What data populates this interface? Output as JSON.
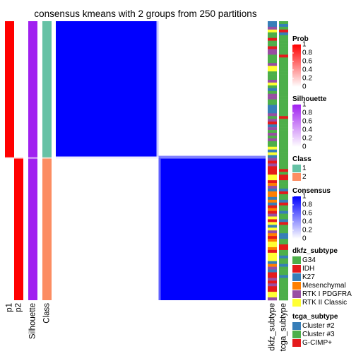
{
  "chart_data": {
    "type": "heatmap",
    "title": "consensus kmeans with 2 groups from 250 partitions",
    "annotation_columns": [
      "p1",
      "p2",
      "Silhouette",
      "Class"
    ],
    "row_annotation_columns": [
      "dkfz_subtype",
      "tcga_subtype"
    ],
    "groups": [
      {
        "class": 1,
        "size_fraction": 0.49,
        "p1": 1,
        "p2": 0,
        "silhouette": 1
      },
      {
        "class": 2,
        "size_fraction": 0.51,
        "p1": 0,
        "p2": 1,
        "silhouette": 1
      }
    ],
    "consensus_matrix": {
      "blocks": [
        {
          "rows": "class 1",
          "cols": "class 1",
          "value": 1
        },
        {
          "rows": "class 1",
          "cols": "class 2",
          "value": 0
        },
        {
          "rows": "class 2",
          "cols": "class 1",
          "value": 0
        },
        {
          "rows": "class 2",
          "cols": "class 2",
          "value": 1
        }
      ]
    },
    "legends": [
      {
        "title": "Prob",
        "type": "continuous",
        "ticks": [
          "1",
          "0.8",
          "0.6",
          "0.4",
          "0.2",
          "0"
        ],
        "low_color": "#ffffff",
        "high_color": "#ff0000"
      },
      {
        "title": "Silhouette",
        "type": "continuous",
        "ticks": [
          "1",
          "0.8",
          "0.6",
          "0.4",
          "0.2",
          "0"
        ],
        "low_color": "#ffffff",
        "high_color": "#a020f0"
      },
      {
        "title": "Class",
        "type": "discrete",
        "items": [
          {
            "label": "1",
            "color": "#66c2a5"
          },
          {
            "label": "2",
            "color": "#fc8d62"
          }
        ]
      },
      {
        "title": "Consensus",
        "type": "continuous",
        "ticks": [
          "1",
          "0.8",
          "0.6",
          "0.4",
          "0.2",
          "0"
        ],
        "low_color": "#ffffff",
        "high_color": "#0000ff"
      },
      {
        "title": "dkfz_subtype",
        "type": "discrete",
        "items": [
          {
            "label": "G34",
            "color": "#4daf4a"
          },
          {
            "label": "IDH",
            "color": "#e41a1c"
          },
          {
            "label": "K27",
            "color": "#377eb8"
          },
          {
            "label": "Mesenchymal",
            "color": "#ff7f00"
          },
          {
            "label": "RTK I PDGFRA",
            "color": "#984ea3"
          },
          {
            "label": "RTK II Classic",
            "color": "#ffff33"
          }
        ]
      },
      {
        "title": "tcga_subtype",
        "type": "discrete",
        "items": [
          {
            "label": "Cluster #2",
            "color": "#377eb8"
          },
          {
            "label": "Cluster #3",
            "color": "#4daf4a"
          },
          {
            "label": "G-CIMP+",
            "color": "#e41a1c"
          }
        ]
      }
    ]
  }
}
